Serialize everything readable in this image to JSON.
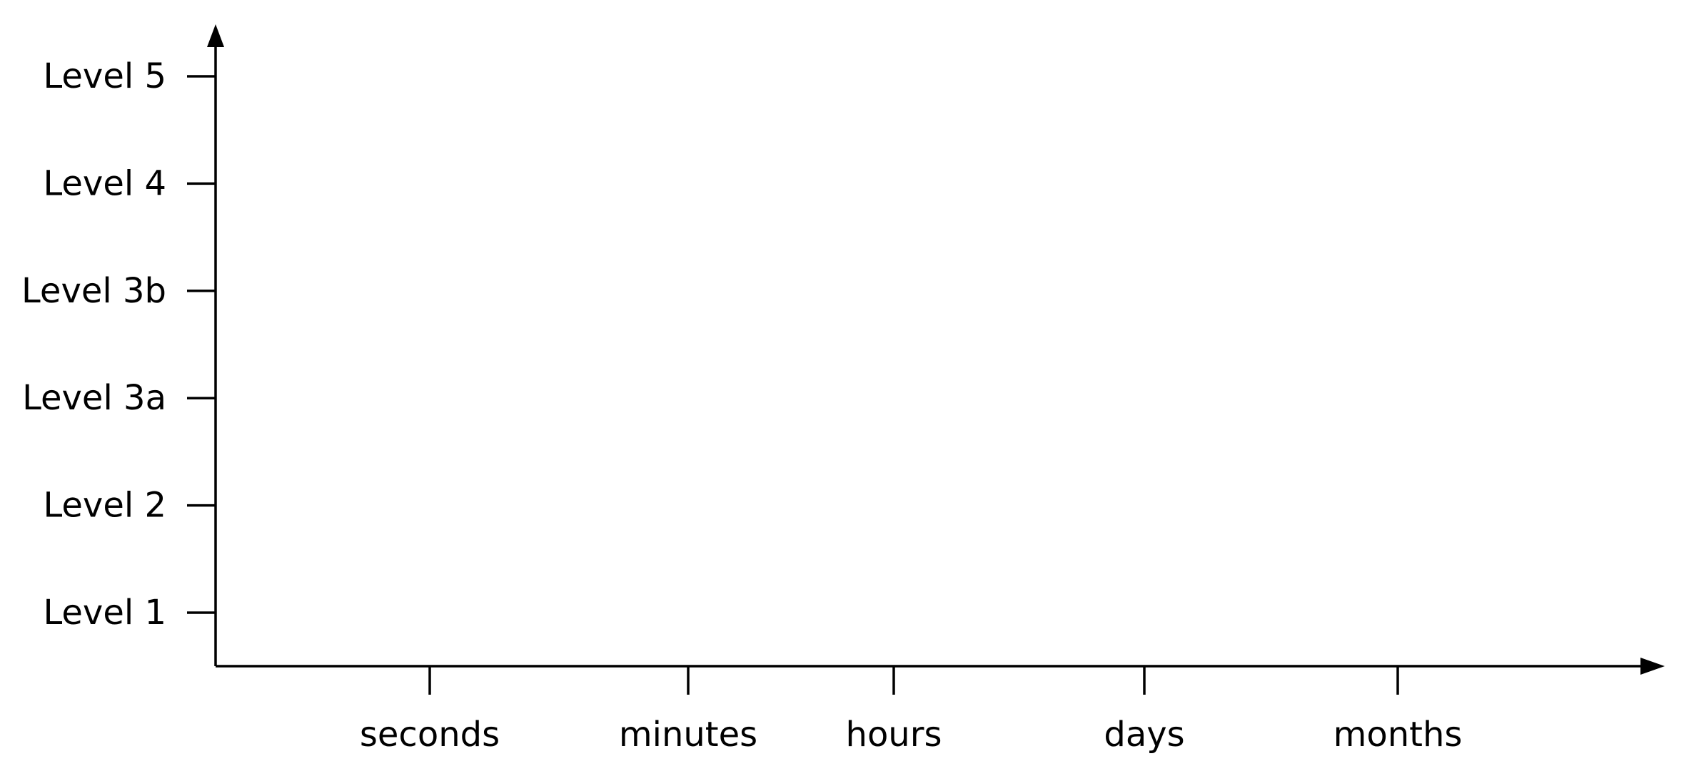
{
  "chart_data": {
    "type": "scatter",
    "title": "",
    "xlabel": "",
    "ylabel": "",
    "x_categories": [
      "seconds",
      "minutes",
      "hours",
      "days",
      "months"
    ],
    "y_categories": [
      "Level 1",
      "Level 2",
      "Level 3a",
      "Level 3b",
      "Level 4",
      "Level 5"
    ],
    "series": [],
    "grid": false,
    "legend": "none",
    "colors": {
      "axis": "#000000",
      "text": "#000000",
      "background": "#ffffff"
    }
  }
}
